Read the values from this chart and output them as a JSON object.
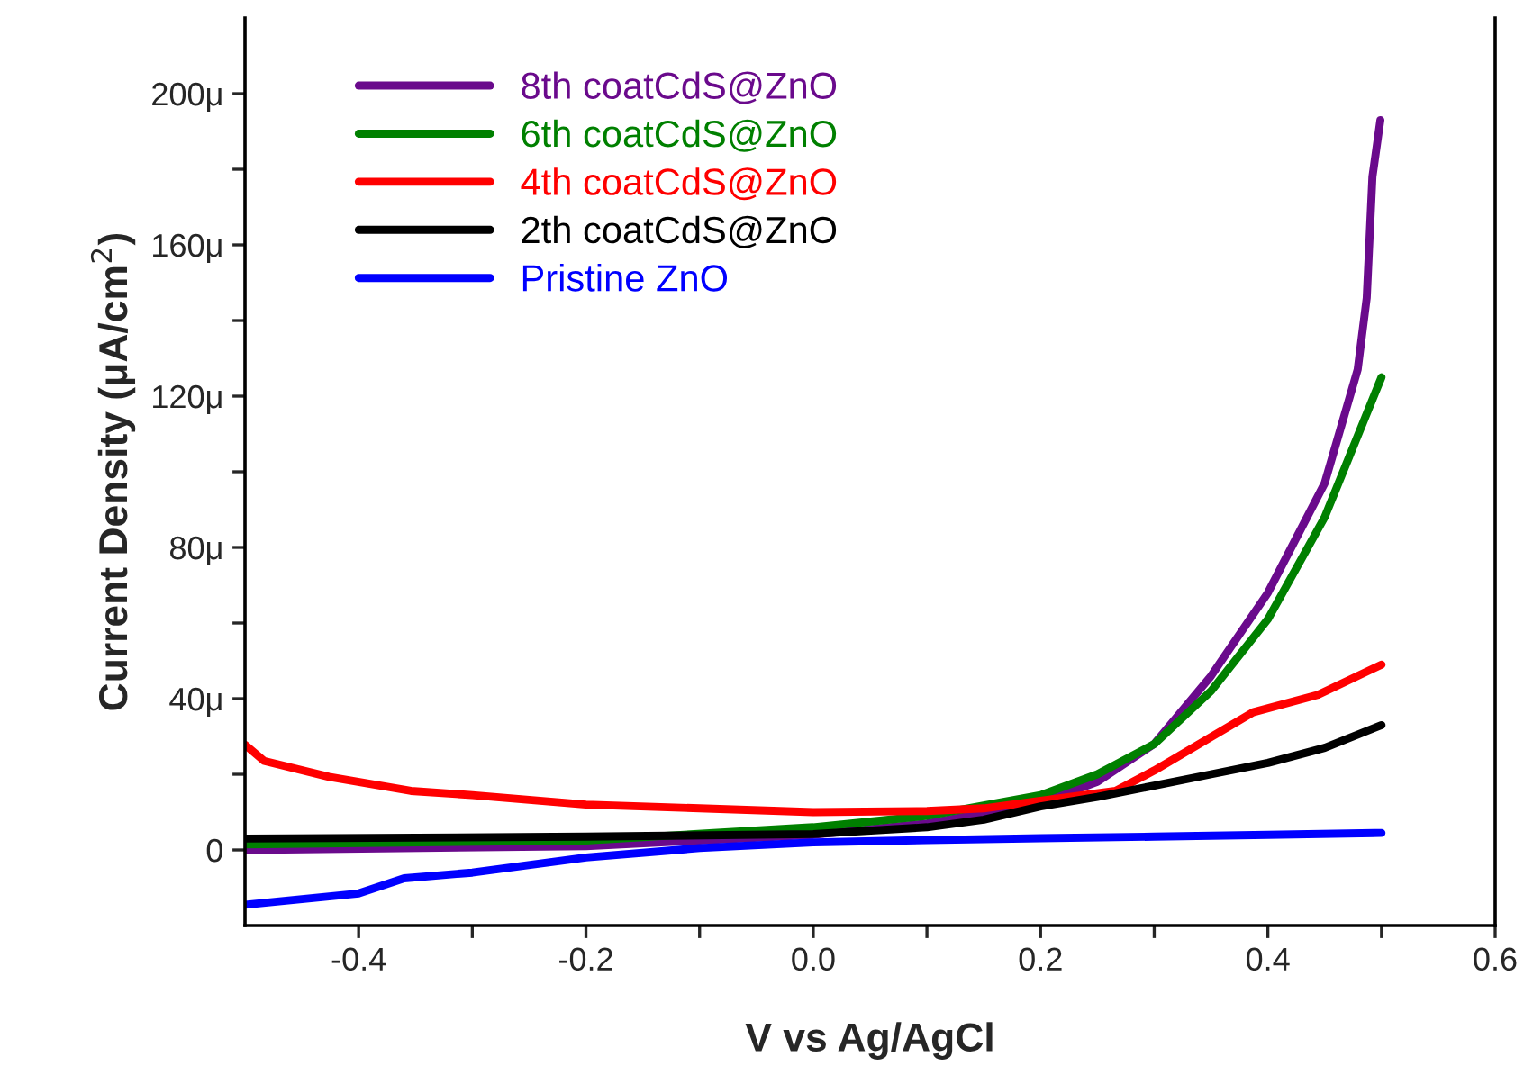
{
  "chart_data": {
    "type": "line",
    "xlabel": "V vs Ag/AgCl",
    "ylabel": "Current Density (μA/cm$^{2}$)",
    "xlim": [
      -0.5,
      0.6
    ],
    "ylim": [
      -20,
      220
    ],
    "xticks": [
      -0.4,
      {
        "value": -0.3,
        "label": null
      },
      -0.2,
      {
        "value": -0.1,
        "label": null
      },
      {
        "value": 0,
        "label": "0.0"
      },
      {
        "value": 0.1,
        "label": null
      },
      0.2,
      {
        "value": 0.3,
        "label": null
      },
      0.4,
      {
        "value": 0.5,
        "label": null
      },
      0.6
    ],
    "yticks": [
      0,
      {
        "value": 20,
        "label": null
      },
      {
        "value": 40,
        "label": "40μ"
      },
      {
        "value": 60,
        "label": null
      },
      {
        "value": 80,
        "label": "80μ"
      },
      {
        "value": 100,
        "label": null
      },
      {
        "value": 120,
        "label": "120μ"
      },
      {
        "value": 140,
        "label": null
      },
      {
        "value": 160,
        "label": "160μ"
      },
      {
        "value": 180,
        "label": null
      },
      {
        "value": 200,
        "label": "200μ"
      }
    ],
    "legend": "top left",
    "grid": false,
    "line_style": "solid",
    "marker": "none",
    "series": [
      {
        "name": "8th coatCdS@ZnO",
        "color": "#6a0a8c",
        "x": [
          -0.5,
          -0.2,
          0,
          0.1,
          0.2,
          0.25,
          0.3,
          0.35,
          0.4,
          0.45,
          0.479,
          0.487,
          0.492,
          0.499
        ],
        "values": [
          0,
          1,
          4,
          7,
          12.5,
          18,
          28,
          46,
          68,
          97,
          127,
          146,
          178,
          193
        ]
      },
      {
        "name": "6th coatCdS@ZnO",
        "color": "#008000",
        "x": [
          -0.5,
          -0.2,
          0,
          0.1,
          0.2,
          0.25,
          0.3,
          0.35,
          0.4,
          0.45,
          0.5
        ],
        "values": [
          1.5,
          2.5,
          6,
          9,
          14.5,
          20,
          28,
          42,
          61,
          88,
          125
        ]
      },
      {
        "name": "4th coatCdS@ZnO",
        "color": "#ff0000",
        "x": [
          -0.5,
          -0.483,
          -0.426,
          -0.354,
          -0.3,
          -0.2,
          -0.1,
          0,
          0.1,
          0.15,
          0.2,
          0.266,
          0.3,
          0.348,
          0.387,
          0.444,
          0.5
        ],
        "values": [
          27.8,
          23.5,
          19.3,
          15.6,
          14.5,
          12,
          11,
          10,
          10.3,
          11,
          13,
          15.6,
          21,
          29.5,
          36.4,
          41,
          49
        ]
      },
      {
        "name": "2th coatCdS@ZnO",
        "color": "#000000",
        "x": [
          -0.5,
          -0.2,
          0,
          0.1,
          0.15,
          0.2,
          0.25,
          0.3,
          0.35,
          0.4,
          0.45,
          0.5
        ],
        "values": [
          3,
          3.5,
          4.2,
          6,
          8,
          11.5,
          14,
          17,
          20,
          23,
          27,
          33
        ]
      },
      {
        "name": "Pristine ZnO",
        "color": "#0000ff",
        "x": [
          -0.5,
          -0.4,
          -0.36,
          -0.3,
          -0.2,
          -0.1,
          0,
          0.1,
          0.2,
          0.3,
          0.4,
          0.5
        ],
        "values": [
          -14.5,
          -11.5,
          -7.5,
          -6,
          -2,
          0.5,
          2,
          2.6,
          3.1,
          3.5,
          4,
          4.5
        ]
      }
    ]
  }
}
